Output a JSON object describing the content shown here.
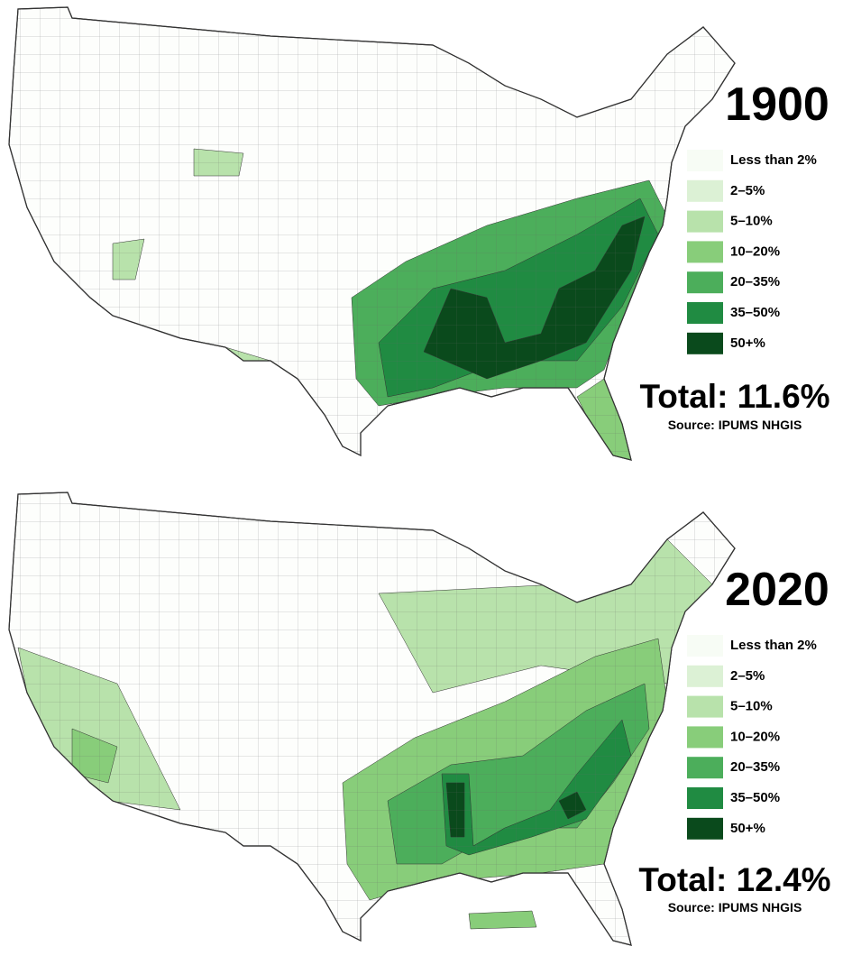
{
  "maps": [
    {
      "year": "1900",
      "legend": [
        {
          "label": "Less than 2%",
          "color": "#f7fcf5"
        },
        {
          "label": "2–5%",
          "color": "#dcf1d5"
        },
        {
          "label": "5–10%",
          "color": "#b8e2ab"
        },
        {
          "label": "10–20%",
          "color": "#88cd7a"
        },
        {
          "label": "20–35%",
          "color": "#4cae5b"
        },
        {
          "label": "35–50%",
          "color": "#208b42"
        },
        {
          "label": "50+%",
          "color": "#0a4a1c"
        }
      ],
      "total": "Total: 11.6%",
      "source": "Source: IPUMS NHGIS"
    },
    {
      "year": "2020",
      "legend": [
        {
          "label": "Less than 2%",
          "color": "#f7fcf5"
        },
        {
          "label": "2–5%",
          "color": "#dcf1d5"
        },
        {
          "label": "5–10%",
          "color": "#b8e2ab"
        },
        {
          "label": "10–20%",
          "color": "#88cd7a"
        },
        {
          "label": "20–35%",
          "color": "#4cae5b"
        },
        {
          "label": "35–50%",
          "color": "#208b42"
        },
        {
          "label": "50+%",
          "color": "#0a4a1c"
        }
      ],
      "total": "Total: 12.4%",
      "source": "Source: IPUMS NHGIS"
    }
  ]
}
